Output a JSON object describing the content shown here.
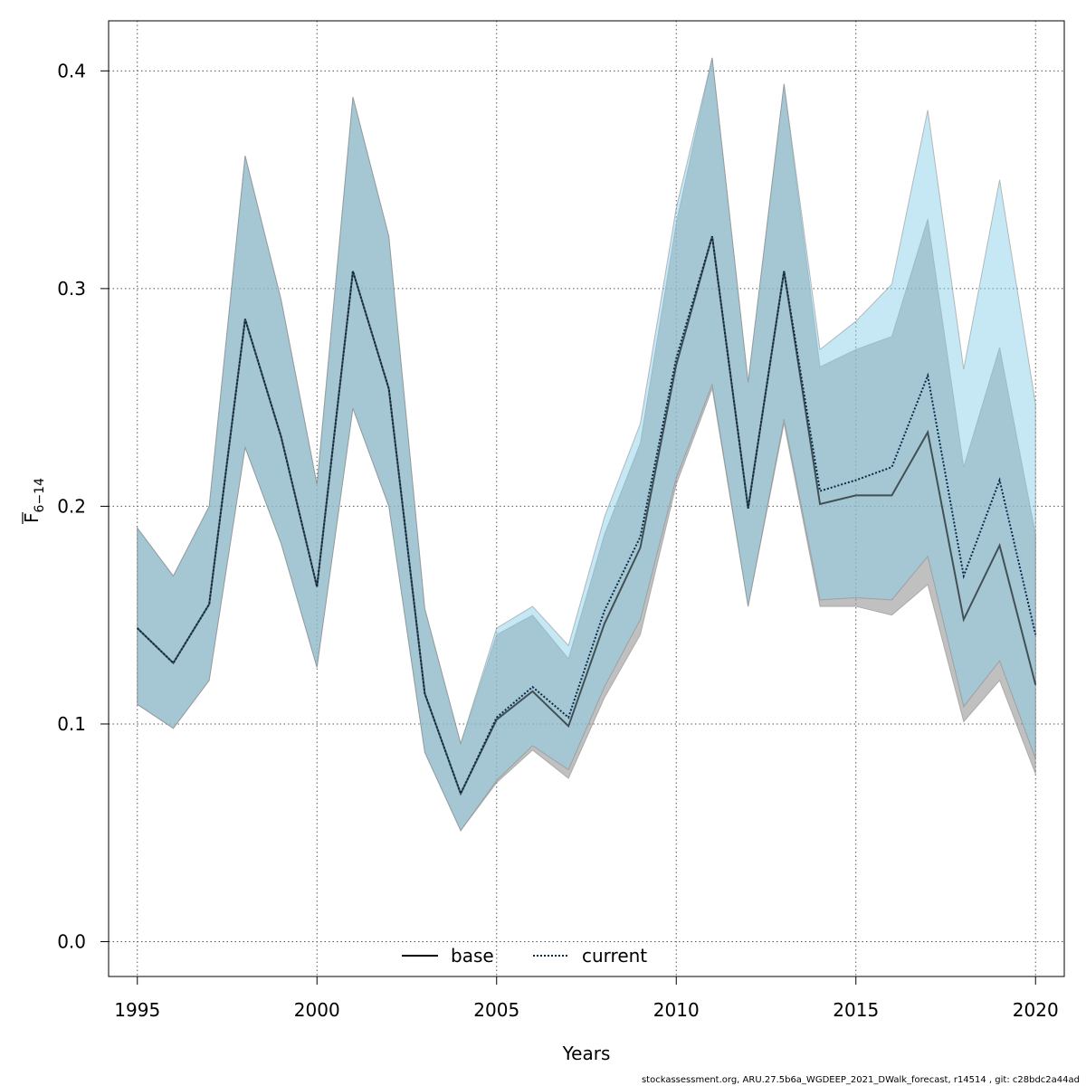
{
  "chart_data": {
    "type": "line",
    "xlabel": "Years",
    "ylabel_main": "F",
    "ylabel_sub": "6−14",
    "xlim": [
      1994.2,
      2020.8
    ],
    "ylim": [
      -0.016,
      0.423
    ],
    "x_ticks": [
      1995,
      2000,
      2005,
      2010,
      2015,
      2020
    ],
    "x_tick_labels": [
      "1995",
      "2000",
      "2005",
      "2010",
      "2015",
      "2020"
    ],
    "y_ticks": [
      0.0,
      0.1,
      0.2,
      0.3,
      0.4
    ],
    "y_tick_labels": [
      "0.0",
      "0.1",
      "0.2",
      "0.3",
      "0.4"
    ],
    "grid": true,
    "legend_position": "bottom-center",
    "x": [
      1995,
      1996,
      1997,
      1998,
      1999,
      2000,
      2001,
      2002,
      2003,
      2004,
      2005,
      2006,
      2007,
      2008,
      2009,
      2010,
      2011,
      2012,
      2013,
      2014,
      2015,
      2016,
      2017,
      2018,
      2019,
      2020
    ],
    "series": [
      {
        "name": "base",
        "line_style": "solid",
        "line_color": "#000000",
        "band_color": "#9a9a9a",
        "values": [
          0.144,
          0.128,
          0.155,
          0.286,
          0.232,
          0.163,
          0.308,
          0.254,
          0.114,
          0.068,
          0.102,
          0.115,
          0.099,
          0.146,
          0.181,
          0.265,
          0.324,
          0.199,
          0.308,
          0.201,
          0.205,
          0.205,
          0.234,
          0.148,
          0.182,
          0.118
        ],
        "upper": [
          0.19,
          0.168,
          0.2,
          0.361,
          0.295,
          0.21,
          0.388,
          0.324,
          0.153,
          0.091,
          0.141,
          0.15,
          0.13,
          0.187,
          0.229,
          0.33,
          0.406,
          0.257,
          0.394,
          0.264,
          0.272,
          0.278,
          0.332,
          0.218,
          0.273,
          0.187
        ],
        "lower": [
          0.109,
          0.098,
          0.12,
          0.227,
          0.183,
          0.126,
          0.245,
          0.2,
          0.087,
          0.051,
          0.073,
          0.088,
          0.075,
          0.112,
          0.141,
          0.21,
          0.254,
          0.154,
          0.238,
          0.154,
          0.154,
          0.15,
          0.164,
          0.101,
          0.12,
          0.077
        ]
      },
      {
        "name": "current",
        "line_style": "dotted",
        "line_color": "#0a2a4a",
        "band_color": "#87ceeb",
        "values": [
          0.144,
          0.128,
          0.155,
          0.286,
          0.232,
          0.163,
          0.308,
          0.254,
          0.114,
          0.068,
          0.103,
          0.117,
          0.103,
          0.152,
          0.186,
          0.268,
          0.324,
          0.199,
          0.308,
          0.207,
          0.212,
          0.218,
          0.26,
          0.168,
          0.212,
          0.141
        ],
        "upper": [
          0.19,
          0.168,
          0.2,
          0.361,
          0.295,
          0.21,
          0.388,
          0.324,
          0.153,
          0.091,
          0.144,
          0.154,
          0.136,
          0.195,
          0.238,
          0.337,
          0.406,
          0.257,
          0.394,
          0.272,
          0.285,
          0.302,
          0.382,
          0.263,
          0.35,
          0.247
        ],
        "lower": [
          0.109,
          0.098,
          0.12,
          0.227,
          0.183,
          0.126,
          0.245,
          0.2,
          0.087,
          0.051,
          0.074,
          0.09,
          0.079,
          0.117,
          0.148,
          0.213,
          0.256,
          0.154,
          0.24,
          0.157,
          0.158,
          0.157,
          0.177,
          0.108,
          0.129,
          0.084
        ]
      }
    ]
  },
  "footer": {
    "text": "stockassessment.org, ARU.27.5b6a_WGDEEP_2021_DWalk_forecast, r14514 , git: c28bdc2a44ad"
  }
}
